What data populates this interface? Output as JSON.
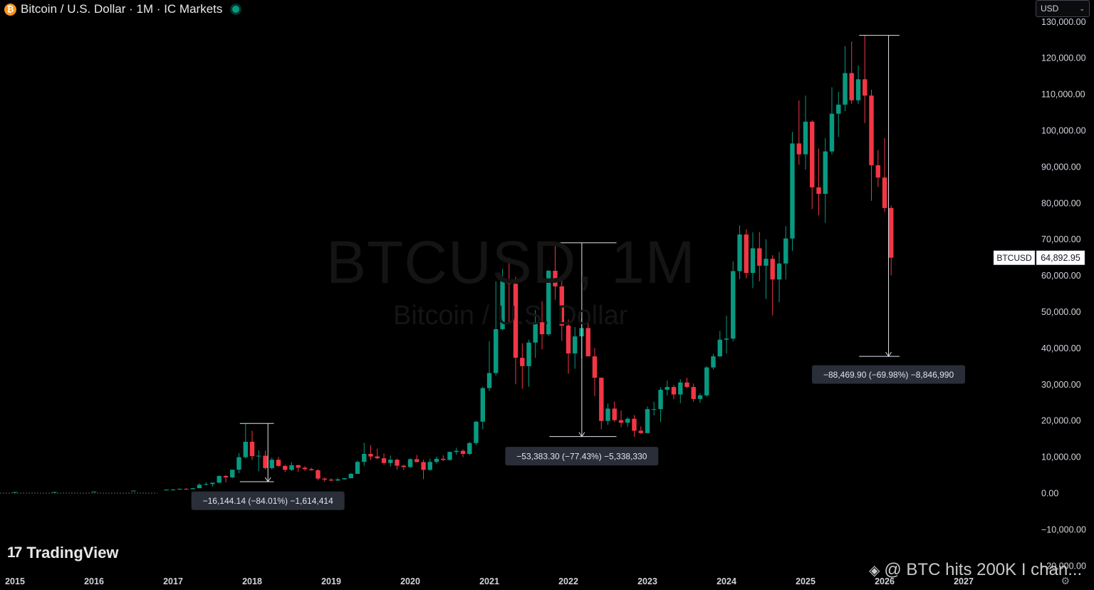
{
  "header": {
    "icon": "bitcoin-icon",
    "title": "Bitcoin / U.S. Dollar · 1M · IC Markets",
    "live_status_color": "#089981"
  },
  "currency_selector": {
    "value": "USD"
  },
  "watermark": {
    "symbol": "BTCUSD, 1M",
    "name": "Bitcoin / U.S. Dollar"
  },
  "branding": {
    "logo_text": "TradingView"
  },
  "overlay_caption": "@ BTC hits 200K I chan...",
  "chart_data": {
    "type": "candlestick",
    "symbol": "BTCUSD",
    "interval": "1M",
    "y_axis_labels": [
      "130,000.00",
      "120,000.00",
      "110,000.00",
      "100,000.00",
      "90,000.00",
      "80,000.00",
      "70,000.00",
      "60,000.00",
      "50,000.00",
      "40,000.00",
      "30,000.00",
      "20,000.00",
      "10,000.00",
      "0.00",
      "−10,000.00",
      "−20,000.00"
    ],
    "y_ticks": [
      130000,
      120000,
      110000,
      100000,
      90000,
      80000,
      70000,
      60000,
      50000,
      40000,
      30000,
      20000,
      10000,
      0,
      -10000,
      -20000
    ],
    "x_axis_labels": [
      "2015",
      "2016",
      "2017",
      "2018",
      "2019",
      "2020",
      "2021",
      "2022",
      "2023",
      "2024",
      "2025",
      "2026",
      "2027"
    ],
    "ylim": [
      -25000,
      135000
    ],
    "xlim": [
      2015.0,
      2028.65
    ],
    "colors": {
      "up": "#089981",
      "down": "#f23645",
      "measure": "#e0e3eb"
    },
    "last_price": {
      "label": "BTCUSD",
      "value": "64,892.95",
      "y": 64893
    },
    "candles": [
      {
        "t": 2015.0,
        "o": 300,
        "h": 320,
        "l": 280,
        "c": 300
      },
      {
        "t": 2015.5,
        "o": 300,
        "h": 320,
        "l": 280,
        "c": 310
      },
      {
        "t": 2016.0,
        "o": 430,
        "h": 460,
        "l": 400,
        "c": 440
      },
      {
        "t": 2016.5,
        "o": 650,
        "h": 700,
        "l": 600,
        "c": 680
      },
      {
        "t": 2016.917,
        "o": 740,
        "h": 980,
        "l": 700,
        "c": 960
      },
      {
        "t": 2017.0,
        "o": 960,
        "h": 1150,
        "l": 750,
        "c": 970
      },
      {
        "t": 2017.083,
        "o": 970,
        "h": 1200,
        "l": 920,
        "c": 1190
      },
      {
        "t": 2017.167,
        "o": 1190,
        "h": 1300,
        "l": 890,
        "c": 1080
      },
      {
        "t": 2017.25,
        "o": 1080,
        "h": 1350,
        "l": 1070,
        "c": 1350
      },
      {
        "t": 2017.333,
        "o": 1350,
        "h": 2700,
        "l": 1350,
        "c": 2300
      },
      {
        "t": 2017.417,
        "o": 2300,
        "h": 3000,
        "l": 2100,
        "c": 2480
      },
      {
        "t": 2017.5,
        "o": 2480,
        "h": 2900,
        "l": 1800,
        "c": 2870
      },
      {
        "t": 2017.583,
        "o": 2870,
        "h": 4800,
        "l": 2700,
        "c": 4730
      },
      {
        "t": 2017.667,
        "o": 4730,
        "h": 5000,
        "l": 2950,
        "c": 4340
      },
      {
        "t": 2017.75,
        "o": 4340,
        "h": 6450,
        "l": 4100,
        "c": 6450
      },
      {
        "t": 2017.833,
        "o": 6450,
        "h": 11000,
        "l": 5500,
        "c": 9900
      },
      {
        "t": 2017.917,
        "o": 9900,
        "h": 19200,
        "l": 9500,
        "c": 14150
      },
      {
        "t": 2018.0,
        "o": 14150,
        "h": 17200,
        "l": 9100,
        "c": 10200
      },
      {
        "t": 2018.083,
        "o": 10200,
        "h": 11800,
        "l": 6000,
        "c": 10300
      },
      {
        "t": 2018.167,
        "o": 10300,
        "h": 11700,
        "l": 6500,
        "c": 6900
      },
      {
        "t": 2018.25,
        "o": 6900,
        "h": 9800,
        "l": 6500,
        "c": 9200
      },
      {
        "t": 2018.333,
        "o": 9200,
        "h": 10000,
        "l": 7200,
        "c": 7500
      },
      {
        "t": 2018.417,
        "o": 7500,
        "h": 7800,
        "l": 5800,
        "c": 6400
      },
      {
        "t": 2018.5,
        "o": 6400,
        "h": 8500,
        "l": 6100,
        "c": 7700
      },
      {
        "t": 2018.583,
        "o": 7700,
        "h": 7800,
        "l": 5900,
        "c": 7000
      },
      {
        "t": 2018.667,
        "o": 7000,
        "h": 7400,
        "l": 6100,
        "c": 6600
      },
      {
        "t": 2018.75,
        "o": 6600,
        "h": 7000,
        "l": 6200,
        "c": 6300
      },
      {
        "t": 2018.833,
        "o": 6300,
        "h": 6600,
        "l": 3500,
        "c": 4000
      },
      {
        "t": 2018.917,
        "o": 4000,
        "h": 4300,
        "l": 3150,
        "c": 3700
      },
      {
        "t": 2019.0,
        "o": 3700,
        "h": 4100,
        "l": 3350,
        "c": 3450
      },
      {
        "t": 2019.083,
        "o": 3450,
        "h": 4200,
        "l": 3400,
        "c": 3800
      },
      {
        "t": 2019.167,
        "o": 3800,
        "h": 4100,
        "l": 3700,
        "c": 4100
      },
      {
        "t": 2019.25,
        "o": 4100,
        "h": 5600,
        "l": 4050,
        "c": 5300
      },
      {
        "t": 2019.333,
        "o": 5300,
        "h": 9000,
        "l": 5300,
        "c": 8600
      },
      {
        "t": 2019.417,
        "o": 8600,
        "h": 13900,
        "l": 7500,
        "c": 10800
      },
      {
        "t": 2019.5,
        "o": 10800,
        "h": 13200,
        "l": 9100,
        "c": 10100
      },
      {
        "t": 2019.583,
        "o": 10100,
        "h": 12300,
        "l": 9400,
        "c": 9600
      },
      {
        "t": 2019.667,
        "o": 9600,
        "h": 10950,
        "l": 7800,
        "c": 8300
      },
      {
        "t": 2019.75,
        "o": 8300,
        "h": 10350,
        "l": 7300,
        "c": 9200
      },
      {
        "t": 2019.833,
        "o": 9200,
        "h": 9500,
        "l": 6500,
        "c": 7550
      },
      {
        "t": 2019.917,
        "o": 7550,
        "h": 7800,
        "l": 6400,
        "c": 7200
      },
      {
        "t": 2020.0,
        "o": 7200,
        "h": 9600,
        "l": 6900,
        "c": 9350
      },
      {
        "t": 2020.083,
        "o": 9350,
        "h": 10500,
        "l": 8500,
        "c": 8550
      },
      {
        "t": 2020.167,
        "o": 8550,
        "h": 9200,
        "l": 3850,
        "c": 6400
      },
      {
        "t": 2020.25,
        "o": 6400,
        "h": 9500,
        "l": 6150,
        "c": 8600
      },
      {
        "t": 2020.333,
        "o": 8600,
        "h": 10100,
        "l": 8100,
        "c": 9450
      },
      {
        "t": 2020.417,
        "o": 9450,
        "h": 10400,
        "l": 8900,
        "c": 9140
      },
      {
        "t": 2020.5,
        "o": 9140,
        "h": 11500,
        "l": 8950,
        "c": 11350
      },
      {
        "t": 2020.583,
        "o": 11350,
        "h": 12500,
        "l": 10600,
        "c": 11650
      },
      {
        "t": 2020.667,
        "o": 11650,
        "h": 12050,
        "l": 9900,
        "c": 10800
      },
      {
        "t": 2020.75,
        "o": 10800,
        "h": 14100,
        "l": 10400,
        "c": 13800
      },
      {
        "t": 2020.833,
        "o": 13800,
        "h": 19900,
        "l": 13200,
        "c": 19700
      },
      {
        "t": 2020.917,
        "o": 19700,
        "h": 29300,
        "l": 17600,
        "c": 28950
      },
      {
        "t": 2021.0,
        "o": 28950,
        "h": 41900,
        "l": 28100,
        "c": 33100
      },
      {
        "t": 2021.083,
        "o": 33100,
        "h": 58400,
        "l": 32400,
        "c": 45200
      },
      {
        "t": 2021.167,
        "o": 45200,
        "h": 61800,
        "l": 44900,
        "c": 58800
      },
      {
        "t": 2021.25,
        "o": 58800,
        "h": 64900,
        "l": 47000,
        "c": 57700
      },
      {
        "t": 2021.333,
        "o": 57700,
        "h": 59600,
        "l": 30000,
        "c": 37300
      },
      {
        "t": 2021.417,
        "o": 37300,
        "h": 41300,
        "l": 28800,
        "c": 35000
      },
      {
        "t": 2021.5,
        "o": 35000,
        "h": 42300,
        "l": 29300,
        "c": 41500
      },
      {
        "t": 2021.583,
        "o": 41500,
        "h": 50500,
        "l": 37300,
        "c": 47100
      },
      {
        "t": 2021.667,
        "o": 47100,
        "h": 52900,
        "l": 39600,
        "c": 43800
      },
      {
        "t": 2021.75,
        "o": 43800,
        "h": 61500,
        "l": 43300,
        "c": 61300
      },
      {
        "t": 2021.833,
        "o": 61300,
        "h": 69000,
        "l": 53300,
        "c": 57000
      },
      {
        "t": 2021.917,
        "o": 57000,
        "h": 59100,
        "l": 42000,
        "c": 46200
      },
      {
        "t": 2022.0,
        "o": 46200,
        "h": 47900,
        "l": 32900,
        "c": 38500
      },
      {
        "t": 2022.083,
        "o": 38500,
        "h": 45800,
        "l": 34300,
        "c": 43200
      },
      {
        "t": 2022.167,
        "o": 43200,
        "h": 48200,
        "l": 37200,
        "c": 45500
      },
      {
        "t": 2022.25,
        "o": 45500,
        "h": 47400,
        "l": 37700,
        "c": 37700
      },
      {
        "t": 2022.333,
        "o": 37700,
        "h": 40000,
        "l": 26700,
        "c": 31800
      },
      {
        "t": 2022.417,
        "o": 31800,
        "h": 31900,
        "l": 17600,
        "c": 19900
      },
      {
        "t": 2022.5,
        "o": 19900,
        "h": 24700,
        "l": 18800,
        "c": 23300
      },
      {
        "t": 2022.583,
        "o": 23300,
        "h": 25200,
        "l": 19600,
        "c": 20100
      },
      {
        "t": 2022.667,
        "o": 20100,
        "h": 22800,
        "l": 18200,
        "c": 19400
      },
      {
        "t": 2022.75,
        "o": 19400,
        "h": 20900,
        "l": 18300,
        "c": 20500
      },
      {
        "t": 2022.833,
        "o": 20500,
        "h": 21500,
        "l": 15500,
        "c": 17200
      },
      {
        "t": 2022.917,
        "o": 17200,
        "h": 18400,
        "l": 16300,
        "c": 16550
      },
      {
        "t": 2023.0,
        "o": 16550,
        "h": 23900,
        "l": 16500,
        "c": 23150
      },
      {
        "t": 2023.083,
        "o": 23150,
        "h": 25200,
        "l": 21400,
        "c": 23150
      },
      {
        "t": 2023.167,
        "o": 23150,
        "h": 29200,
        "l": 19600,
        "c": 28500
      },
      {
        "t": 2023.25,
        "o": 28500,
        "h": 31000,
        "l": 26900,
        "c": 29250
      },
      {
        "t": 2023.333,
        "o": 29250,
        "h": 29800,
        "l": 25900,
        "c": 27200
      },
      {
        "t": 2023.417,
        "o": 27200,
        "h": 31400,
        "l": 24800,
        "c": 30500
      },
      {
        "t": 2023.5,
        "o": 30500,
        "h": 31800,
        "l": 28900,
        "c": 29250
      },
      {
        "t": 2023.583,
        "o": 29250,
        "h": 30200,
        "l": 25200,
        "c": 25950
      },
      {
        "t": 2023.667,
        "o": 25950,
        "h": 27500,
        "l": 24900,
        "c": 26950
      },
      {
        "t": 2023.75,
        "o": 26950,
        "h": 35000,
        "l": 26550,
        "c": 34650
      },
      {
        "t": 2023.833,
        "o": 34650,
        "h": 38400,
        "l": 34100,
        "c": 37700
      },
      {
        "t": 2023.917,
        "o": 37700,
        "h": 44700,
        "l": 37600,
        "c": 42300
      },
      {
        "t": 2024.0,
        "o": 42300,
        "h": 48900,
        "l": 38500,
        "c": 42600
      },
      {
        "t": 2024.083,
        "o": 42600,
        "h": 63900,
        "l": 41900,
        "c": 61200
      },
      {
        "t": 2024.167,
        "o": 61200,
        "h": 73800,
        "l": 59000,
        "c": 71300
      },
      {
        "t": 2024.25,
        "o": 71300,
        "h": 72700,
        "l": 59200,
        "c": 60700
      },
      {
        "t": 2024.333,
        "o": 60700,
        "h": 71900,
        "l": 56500,
        "c": 67500
      },
      {
        "t": 2024.417,
        "o": 67500,
        "h": 72000,
        "l": 58400,
        "c": 62700
      },
      {
        "t": 2024.5,
        "o": 62700,
        "h": 70000,
        "l": 53500,
        "c": 64600
      },
      {
        "t": 2024.583,
        "o": 64600,
        "h": 65600,
        "l": 49000,
        "c": 58900
      },
      {
        "t": 2024.667,
        "o": 58900,
        "h": 66500,
        "l": 52600,
        "c": 63300
      },
      {
        "t": 2024.75,
        "o": 63300,
        "h": 73600,
        "l": 58900,
        "c": 70200
      },
      {
        "t": 2024.833,
        "o": 70200,
        "h": 99600,
        "l": 66800,
        "c": 96400
      },
      {
        "t": 2024.917,
        "o": 96400,
        "h": 108300,
        "l": 90500,
        "c": 93400
      },
      {
        "t": 2025.0,
        "o": 93400,
        "h": 109600,
        "l": 89200,
        "c": 102400
      },
      {
        "t": 2025.083,
        "o": 102400,
        "h": 102800,
        "l": 78300,
        "c": 84300
      },
      {
        "t": 2025.167,
        "o": 84300,
        "h": 95000,
        "l": 76600,
        "c": 82500
      },
      {
        "t": 2025.25,
        "o": 82500,
        "h": 97900,
        "l": 74500,
        "c": 94200
      },
      {
        "t": 2025.333,
        "o": 94200,
        "h": 111900,
        "l": 93400,
        "c": 104600
      },
      {
        "t": 2025.417,
        "o": 104600,
        "h": 110600,
        "l": 98200,
        "c": 107100
      },
      {
        "t": 2025.5,
        "o": 107100,
        "h": 123200,
        "l": 105300,
        "c": 115800
      },
      {
        "t": 2025.583,
        "o": 115800,
        "h": 124500,
        "l": 107300,
        "c": 108300
      },
      {
        "t": 2025.667,
        "o": 108300,
        "h": 117900,
        "l": 107300,
        "c": 114100
      },
      {
        "t": 2025.75,
        "o": 114100,
        "h": 126200,
        "l": 102000,
        "c": 109600
      },
      {
        "t": 2025.833,
        "o": 109600,
        "h": 111200,
        "l": 80600,
        "c": 90400
      },
      {
        "t": 2025.917,
        "o": 90400,
        "h": 94600,
        "l": 84400,
        "c": 87000
      },
      {
        "t": 2026.0,
        "o": 87000,
        "h": 97900,
        "l": 77500,
        "c": 78600
      },
      {
        "t": 2026.083,
        "o": 78600,
        "h": 79300,
        "l": 60000,
        "c": 64893
      }
    ],
    "measurements": [
      {
        "x1": 2017.917,
        "x2": 2018.167,
        "x_line": 2018.2,
        "y_top": 19200,
        "y_bottom": 3150,
        "label": "−16,144.14 (−84.01%) −1,614,414",
        "label_x": 2018.2,
        "label_y": -2100
      },
      {
        "x1": 2021.833,
        "x2": 2022.5,
        "x_line": 2022.17,
        "y_top": 69000,
        "y_bottom": 15600,
        "label": "−53,383.30 (−77.43%) −5,338,330",
        "label_x": 2022.17,
        "label_y": 10200
      },
      {
        "x1": 2025.75,
        "x2": 2026.08,
        "x_line": 2026.05,
        "y_top": 126200,
        "y_bottom": 37700,
        "label": "−88,469.90 (−69.98%) −8,846,990",
        "label_x": 2026.05,
        "label_y": 32700
      }
    ]
  }
}
